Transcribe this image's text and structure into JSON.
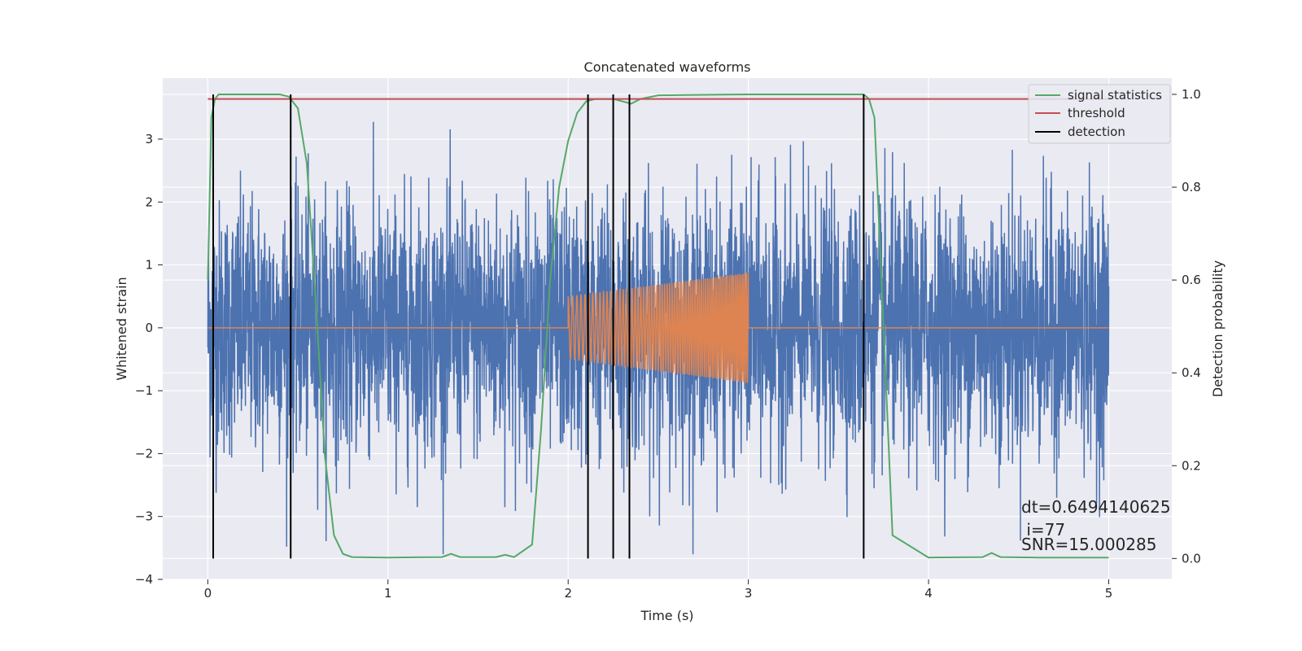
{
  "chart_data": {
    "type": "line",
    "title": "Concatenated waveforms",
    "xlabel": "Time (s)",
    "ylabel": "Whitened strain",
    "ylabel_right": "Detection probability",
    "xlim": [
      -0.25,
      5.35
    ],
    "ylim": [
      -4.0,
      3.97
    ],
    "ylim_right": [
      -0.045,
      1.035
    ],
    "x_ticks": [
      "0",
      "1",
      "2",
      "3",
      "4",
      "5"
    ],
    "y_ticks": [
      "3",
      "2",
      "1",
      "0",
      "−1",
      "−2",
      "−3",
      "−4"
    ],
    "y_ticks_right": [
      "1.0",
      "0.8",
      "0.6",
      "0.4",
      "0.2",
      "0.0"
    ],
    "grid": true,
    "legend_position": "top-right",
    "legend": [
      "signal statistics",
      "threshold",
      "detection"
    ],
    "colors": {
      "strain": "#4c72b0",
      "template": "#dd8452",
      "signal_statistics": "#55a868",
      "threshold": "#c44e52",
      "detection": "#000000",
      "background": "#eaeaf2"
    },
    "series": [
      {
        "name": "signal statistics",
        "axis": "right",
        "x": [
          0.0,
          0.02,
          0.04,
          0.06,
          0.1,
          0.2,
          0.3,
          0.4,
          0.45,
          0.5,
          0.55,
          0.6,
          0.65,
          0.7,
          0.75,
          0.8,
          1.0,
          1.3,
          1.35,
          1.4,
          1.6,
          1.65,
          1.7,
          1.8,
          1.85,
          1.9,
          1.95,
          2.0,
          2.05,
          2.1,
          2.15,
          2.2,
          2.25,
          2.3,
          2.35,
          2.4,
          2.5,
          3.0,
          3.5,
          3.64,
          3.67,
          3.7,
          3.75,
          3.8,
          4.0,
          4.3,
          4.35,
          4.4,
          4.6,
          5.0
        ],
        "values": [
          0.6,
          0.95,
          0.99,
          1.0,
          1.0,
          1.0,
          1.0,
          1.0,
          0.995,
          0.97,
          0.85,
          0.55,
          0.22,
          0.05,
          0.01,
          0.003,
          0.002,
          0.003,
          0.01,
          0.003,
          0.003,
          0.008,
          0.003,
          0.03,
          0.28,
          0.6,
          0.8,
          0.9,
          0.96,
          0.985,
          0.99,
          0.99,
          0.99,
          0.985,
          0.98,
          0.99,
          0.998,
          1.0,
          1.0,
          1.0,
          0.99,
          0.95,
          0.5,
          0.05,
          0.002,
          0.003,
          0.012,
          0.003,
          0.002,
          0.002
        ]
      },
      {
        "name": "threshold",
        "axis": "right",
        "x": [
          0.0,
          5.0
        ],
        "values": [
          0.99,
          0.99
        ]
      }
    ],
    "strain": {
      "axis": "left",
      "x_range": [
        0.0,
        5.0
      ],
      "noise_sigma": 1.0
    },
    "template": {
      "axis": "left",
      "x_range": [
        2.0,
        3.0
      ],
      "amplitude_start": 0.5,
      "amplitude_end": 0.88
    },
    "detections": [
      0.03,
      0.46,
      2.11,
      2.25,
      2.34,
      3.64
    ],
    "annotations": [
      "dt=0.6494140625",
      " i=77",
      "SNR=15.000285"
    ]
  }
}
